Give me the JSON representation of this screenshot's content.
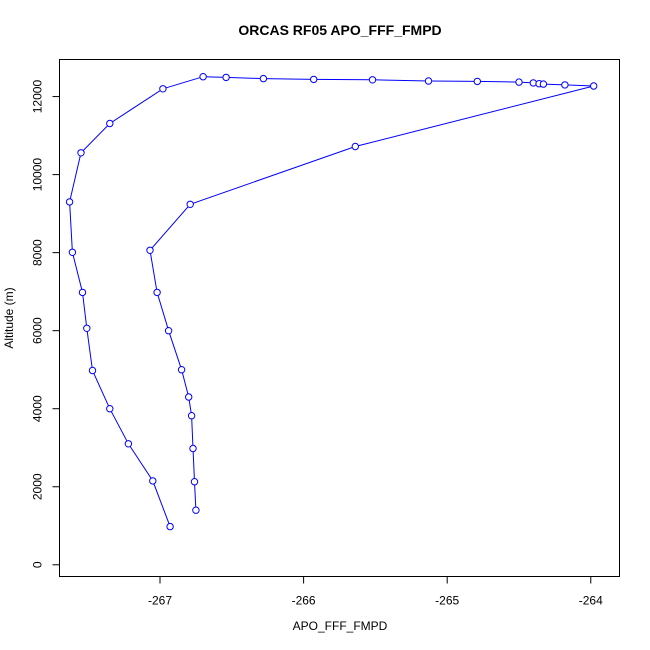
{
  "chart_data": {
    "type": "line",
    "title": "ORCAS RF05 APO_FFF_FMPD",
    "xlabel": "APO_FFF_FMPD",
    "ylabel": "Altitude (m)",
    "xlim": [
      -267.7,
      -263.8
    ],
    "ylim": [
      -300,
      12950
    ],
    "xticks": [
      -267,
      -266,
      -265,
      -264
    ],
    "xtick_labels": [
      "-267",
      "-266",
      "-265",
      "-264"
    ],
    "yticks": [
      0,
      2000,
      4000,
      6000,
      8000,
      10000,
      12000
    ],
    "ytick_labels": [
      "0",
      "2000",
      "4000",
      "6000",
      "8000",
      "10000",
      "12000"
    ],
    "series": [
      {
        "color": "#0000ff",
        "marker": "open-circle",
        "points": [
          {
            "x": -266.93,
            "y": 980
          },
          {
            "x": -267.05,
            "y": 2150
          },
          {
            "x": -267.22,
            "y": 3100
          },
          {
            "x": -267.35,
            "y": 4000
          },
          {
            "x": -267.47,
            "y": 4980
          },
          {
            "x": -267.51,
            "y": 6060
          },
          {
            "x": -267.54,
            "y": 6980
          },
          {
            "x": -267.61,
            "y": 8010
          },
          {
            "x": -267.63,
            "y": 9300
          },
          {
            "x": -267.55,
            "y": 10560
          },
          {
            "x": -267.35,
            "y": 11310
          },
          {
            "x": -266.98,
            "y": 12200
          },
          {
            "x": -266.7,
            "y": 12510
          },
          {
            "x": -266.54,
            "y": 12490
          },
          {
            "x": -266.28,
            "y": 12460
          },
          {
            "x": -265.93,
            "y": 12440
          },
          {
            "x": -265.52,
            "y": 12430
          },
          {
            "x": -265.13,
            "y": 12400
          },
          {
            "x": -264.79,
            "y": 12390
          },
          {
            "x": -264.5,
            "y": 12370
          },
          {
            "x": -264.4,
            "y": 12350
          },
          {
            "x": -264.36,
            "y": 12330
          },
          {
            "x": -264.33,
            "y": 12320
          },
          {
            "x": -264.18,
            "y": 12300
          },
          {
            "x": -263.98,
            "y": 12270
          },
          {
            "x": -265.64,
            "y": 10720
          },
          {
            "x": -266.79,
            "y": 9240
          },
          {
            "x": -267.07,
            "y": 8060
          },
          {
            "x": -267.02,
            "y": 6980
          },
          {
            "x": -266.94,
            "y": 6000
          },
          {
            "x": -266.85,
            "y": 5000
          },
          {
            "x": -266.8,
            "y": 4300
          },
          {
            "x": -266.78,
            "y": 3820
          },
          {
            "x": -266.77,
            "y": 2980
          },
          {
            "x": -266.76,
            "y": 2130
          },
          {
            "x": -266.75,
            "y": 1400
          }
        ]
      }
    ]
  }
}
